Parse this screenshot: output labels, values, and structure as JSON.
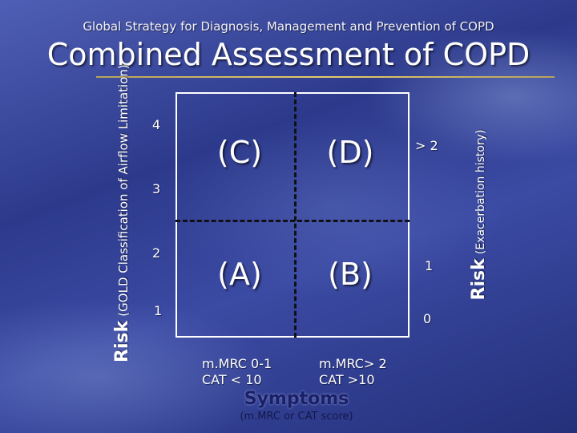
{
  "header": {
    "subtitle": "Global Strategy for Diagnosis, Management and Prevention of COPD",
    "title": "Combined Assessment of COPD"
  },
  "diagram": {
    "quadrants": {
      "top_left": "(C)",
      "top_right": "(D)",
      "bottom_left": "(A)",
      "bottom_right": "(B)"
    },
    "left_axis": {
      "label": "Risk",
      "sublabel": "(GOLD Classification of Airflow Limitation)",
      "ticks": [
        "4",
        "3",
        "2",
        "1"
      ]
    },
    "right_axis": {
      "label": "Risk",
      "sublabel": "(Exacerbation history)",
      "ticks": [
        "> 2",
        "1",
        "0"
      ]
    },
    "x_axis": {
      "left_category": {
        "line1": "m.MRC 0-1",
        "line2": "CAT < 10"
      },
      "right_category": {
        "line1": "m.MRC> 2",
        "line2": "CAT >10"
      },
      "label": "Symptoms",
      "sublabel": "(m.MRC or CAT score)"
    }
  },
  "colors": {
    "accent_rule": "#e4cc6a",
    "divider": "#101018",
    "symptoms_label": "#1a2066"
  }
}
